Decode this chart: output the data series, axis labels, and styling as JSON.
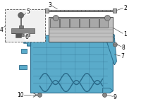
{
  "bg_color": "#ffffff",
  "lc": "#555555",
  "tray_fill": "#5aabca",
  "tray_edge": "#2a6a8a",
  "batt_fill": "#c0c0c0",
  "batt_edge": "#555555",
  "cell_fill": "#a8a8a8",
  "box_fill": "#f0f0f0",
  "label_fs": 5.0,
  "figsize": [
    2.0,
    1.47
  ],
  "dpi": 100
}
